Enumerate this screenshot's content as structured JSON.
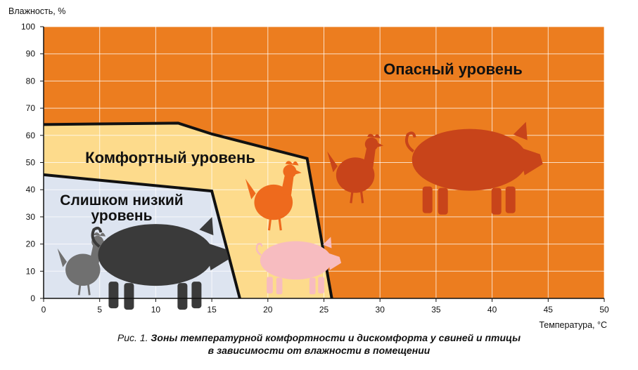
{
  "chart_data": {
    "type": "area",
    "ylabel": "Влажность, %",
    "xlabel": "Температура, °С",
    "xlim": [
      0,
      50
    ],
    "ylim": [
      0,
      100
    ],
    "xticks": [
      0,
      5,
      10,
      15,
      20,
      25,
      30,
      35,
      40,
      45,
      50
    ],
    "yticks": [
      0,
      10,
      20,
      30,
      40,
      50,
      60,
      70,
      80,
      90,
      100
    ],
    "grid": true,
    "zones": [
      {
        "name": "Опасный уровень",
        "color": "#ec7d1f",
        "boundary": []
      },
      {
        "name": "Комфортный уровень",
        "color": "#fddb8c",
        "boundary": [
          [
            0,
            64
          ],
          [
            12,
            64.5
          ],
          [
            15,
            60.5
          ],
          [
            23.5,
            51.5
          ],
          [
            25.7,
            0
          ]
        ]
      },
      {
        "name": "Слишком низкий уровень",
        "name_lines": [
          "Слишком низкий",
          "уровень"
        ],
        "color": "#dde4f0",
        "boundary": [
          [
            0,
            45.5
          ],
          [
            15,
            39.5
          ],
          [
            17.5,
            0
          ]
        ]
      }
    ],
    "icons": [
      {
        "name": "chicken-icon",
        "zone": "low",
        "color": "#707070",
        "x": 3.5,
        "y": 12
      },
      {
        "name": "pig-icon",
        "zone": "low",
        "color": "#3a3a3a",
        "x": 10,
        "y": 16
      },
      {
        "name": "chicken-icon",
        "zone": "comfort",
        "color": "#ee6a1d",
        "x": 20.5,
        "y": 37
      },
      {
        "name": "pig-icon",
        "zone": "comfort",
        "color": "#f7bcc0",
        "x": 22.5,
        "y": 14
      },
      {
        "name": "chicken-icon",
        "zone": "danger",
        "color": "#c8441a",
        "x": 27.8,
        "y": 47
      },
      {
        "name": "pig-icon",
        "zone": "danger",
        "color": "#c8441a",
        "x": 38,
        "y": 51
      }
    ]
  },
  "caption": {
    "fig_label": "Рис. 1.",
    "line1": "Зоны температурной комфортности и дискомфорта у свиней и птицы",
    "line2": "в зависимости от влажности в помещении"
  }
}
